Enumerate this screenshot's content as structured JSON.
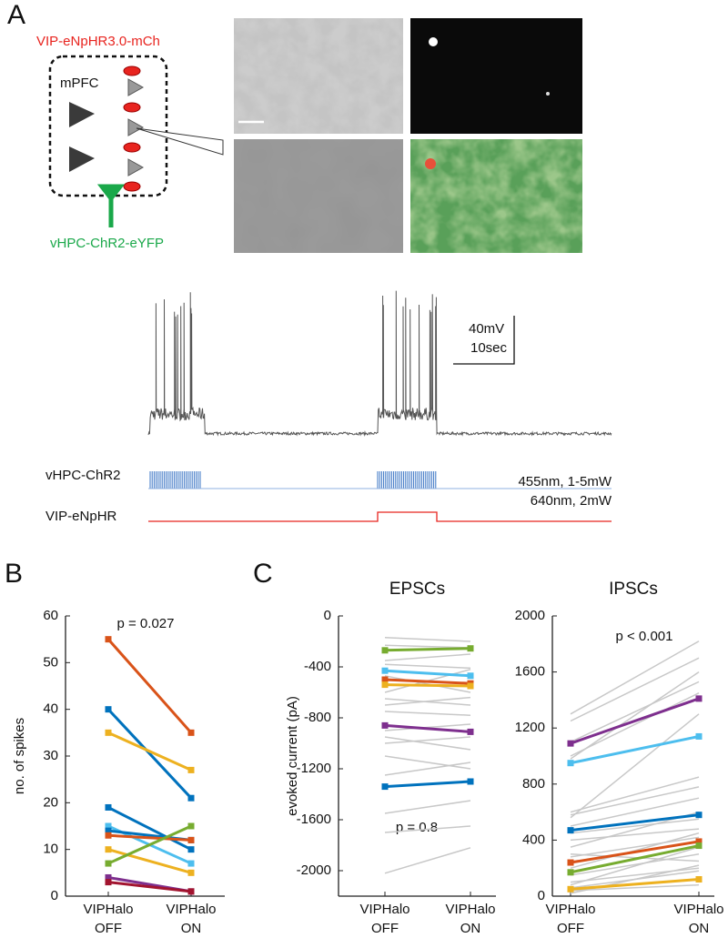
{
  "panels": {
    "a": "A",
    "b": "B",
    "c": "C"
  },
  "panel_a": {
    "top_label": "VIP-eNpHR3.0-mCh",
    "region": "mPFC",
    "bottom_label": "vHPC-ChR2-eYFP",
    "scale_v": "40mV",
    "scale_t": "10sec",
    "stim1": "vHPC-ChR2",
    "stim1_param": "455nm, 1-5mW",
    "stim2": "VIP-eNpHR",
    "stim2_param": "640nm, 2mW"
  },
  "chart_data": [
    {
      "type": "line",
      "ylabel": "no. of spikes",
      "annotation": "p = 0.027",
      "categories": [
        "VIPHalo OFF",
        "VIPHalo ON"
      ],
      "ylim": [
        0,
        60
      ],
      "yticks": [
        0,
        10,
        20,
        30,
        40,
        50,
        60
      ],
      "series": [
        {
          "color": "#d95319",
          "marker": "square",
          "values": [
            55,
            35
          ]
        },
        {
          "color": "#0072bd",
          "marker": "square",
          "values": [
            40,
            21
          ]
        },
        {
          "color": "#edb120",
          "marker": "square",
          "values": [
            35,
            27
          ]
        },
        {
          "color": "#0072bd",
          "marker": "square",
          "values": [
            19,
            10
          ]
        },
        {
          "color": "#4dbeee",
          "marker": "square",
          "values": [
            15,
            7
          ]
        },
        {
          "color": "#0072bd",
          "marker": "square",
          "values": [
            14,
            12
          ]
        },
        {
          "color": "#d95319",
          "marker": "square",
          "values": [
            13,
            12
          ]
        },
        {
          "color": "#edb120",
          "marker": "square",
          "values": [
            10,
            5
          ]
        },
        {
          "color": "#77ac30",
          "marker": "square",
          "values": [
            7,
            15
          ]
        },
        {
          "color": "#7e2f8e",
          "marker": "square",
          "values": [
            4,
            1
          ]
        },
        {
          "color": "#a2142f",
          "marker": "square",
          "values": [
            3,
            1
          ]
        }
      ]
    },
    {
      "type": "line",
      "title": "EPSCs",
      "ylabel": "evoked current (pA)",
      "annotation": "p = 0.8",
      "categories": [
        "VIPHalo OFF",
        "VIPHalo ON"
      ],
      "ylim": [
        -2200,
        0
      ],
      "yticks": [
        0,
        -400,
        -800,
        -1200,
        -1600,
        -2000
      ],
      "series": [
        {
          "color": "#c8c8c8",
          "values": [
            -170,
            -200
          ]
        },
        {
          "color": "#c8c8c8",
          "values": [
            -230,
            -250
          ]
        },
        {
          "color": "#c8c8c8",
          "values": [
            -350,
            -300
          ]
        },
        {
          "color": "#c8c8c8",
          "values": [
            -380,
            -410
          ]
        },
        {
          "color": "#c8c8c8",
          "values": [
            -470,
            -600
          ]
        },
        {
          "color": "#c8c8c8",
          "values": [
            -600,
            -420
          ]
        },
        {
          "color": "#c8c8c8",
          "values": [
            -650,
            -700
          ]
        },
        {
          "color": "#c8c8c8",
          "values": [
            -700,
            -640
          ]
        },
        {
          "color": "#c8c8c8",
          "values": [
            -750,
            -780
          ]
        },
        {
          "color": "#c8c8c8",
          "values": [
            -900,
            -850
          ]
        },
        {
          "color": "#c8c8c8",
          "values": [
            -950,
            -1050
          ]
        },
        {
          "color": "#c8c8c8",
          "values": [
            -1000,
            -950
          ]
        },
        {
          "color": "#c8c8c8",
          "values": [
            -1100,
            -1200
          ]
        },
        {
          "color": "#c8c8c8",
          "values": [
            -1250,
            -1150
          ]
        },
        {
          "color": "#c8c8c8",
          "values": [
            -1550,
            -1450
          ]
        },
        {
          "color": "#c8c8c8",
          "values": [
            -1700,
            -1650
          ]
        },
        {
          "color": "#c8c8c8",
          "values": [
            -2020,
            -1820
          ]
        },
        {
          "color": "#77ac30",
          "marker": "square",
          "values": [
            -270,
            -255
          ]
        },
        {
          "color": "#4dbeee",
          "marker": "square",
          "values": [
            -430,
            -470
          ]
        },
        {
          "color": "#d95319",
          "marker": "square",
          "values": [
            -500,
            -530
          ]
        },
        {
          "color": "#edb120",
          "marker": "square",
          "values": [
            -540,
            -550
          ]
        },
        {
          "color": "#7e2f8e",
          "marker": "square",
          "values": [
            -860,
            -910
          ]
        },
        {
          "color": "#0072bd",
          "marker": "square",
          "values": [
            -1340,
            -1300
          ]
        }
      ]
    },
    {
      "type": "line",
      "title": "IPSCs",
      "annotation": "p < 0.001",
      "categories": [
        "VIPHalo OFF",
        "VIPHalo ON"
      ],
      "ylim": [
        0,
        2000
      ],
      "yticks": [
        0,
        400,
        800,
        1200,
        1600,
        2000
      ],
      "series": [
        {
          "color": "#c8c8c8",
          "values": [
            1300,
            1820
          ]
        },
        {
          "color": "#c8c8c8",
          "values": [
            1250,
            1700
          ]
        },
        {
          "color": "#c8c8c8",
          "values": [
            1100,
            1530
          ]
        },
        {
          "color": "#c8c8c8",
          "values": [
            1000,
            1450
          ]
        },
        {
          "color": "#c8c8c8",
          "values": [
            980,
            1600
          ]
        },
        {
          "color": "#c8c8c8",
          "values": [
            600,
            850
          ]
        },
        {
          "color": "#c8c8c8",
          "values": [
            580,
            780
          ]
        },
        {
          "color": "#c8c8c8",
          "values": [
            560,
            1300
          ]
        },
        {
          "color": "#c8c8c8",
          "values": [
            500,
            700
          ]
        },
        {
          "color": "#c8c8c8",
          "values": [
            450,
            550
          ]
        },
        {
          "color": "#c8c8c8",
          "values": [
            400,
            480
          ]
        },
        {
          "color": "#c8c8c8",
          "values": [
            350,
            600
          ]
        },
        {
          "color": "#c8c8c8",
          "values": [
            300,
            250
          ]
        },
        {
          "color": "#c8c8c8",
          "values": [
            280,
            420
          ]
        },
        {
          "color": "#c8c8c8",
          "values": [
            200,
            450
          ]
        },
        {
          "color": "#c8c8c8",
          "values": [
            150,
            300
          ]
        },
        {
          "color": "#c8c8c8",
          "values": [
            100,
            200
          ]
        },
        {
          "color": "#c8c8c8",
          "values": [
            80,
            350
          ]
        },
        {
          "color": "#c8c8c8",
          "values": [
            60,
            180
          ]
        },
        {
          "color": "#c8c8c8",
          "values": [
            20,
            220
          ]
        },
        {
          "color": "#c8c8c8",
          "values": [
            40,
            80
          ]
        },
        {
          "color": "#7e2f8e",
          "marker": "square",
          "values": [
            1090,
            1410
          ]
        },
        {
          "color": "#4dbeee",
          "marker": "square",
          "values": [
            950,
            1140
          ]
        },
        {
          "color": "#0072bd",
          "marker": "square",
          "values": [
            470,
            580
          ]
        },
        {
          "color": "#d95319",
          "marker": "square",
          "values": [
            240,
            390
          ]
        },
        {
          "color": "#77ac30",
          "marker": "square",
          "values": [
            170,
            360
          ]
        },
        {
          "color": "#edb120",
          "marker": "square",
          "values": [
            50,
            120
          ]
        }
      ]
    }
  ]
}
